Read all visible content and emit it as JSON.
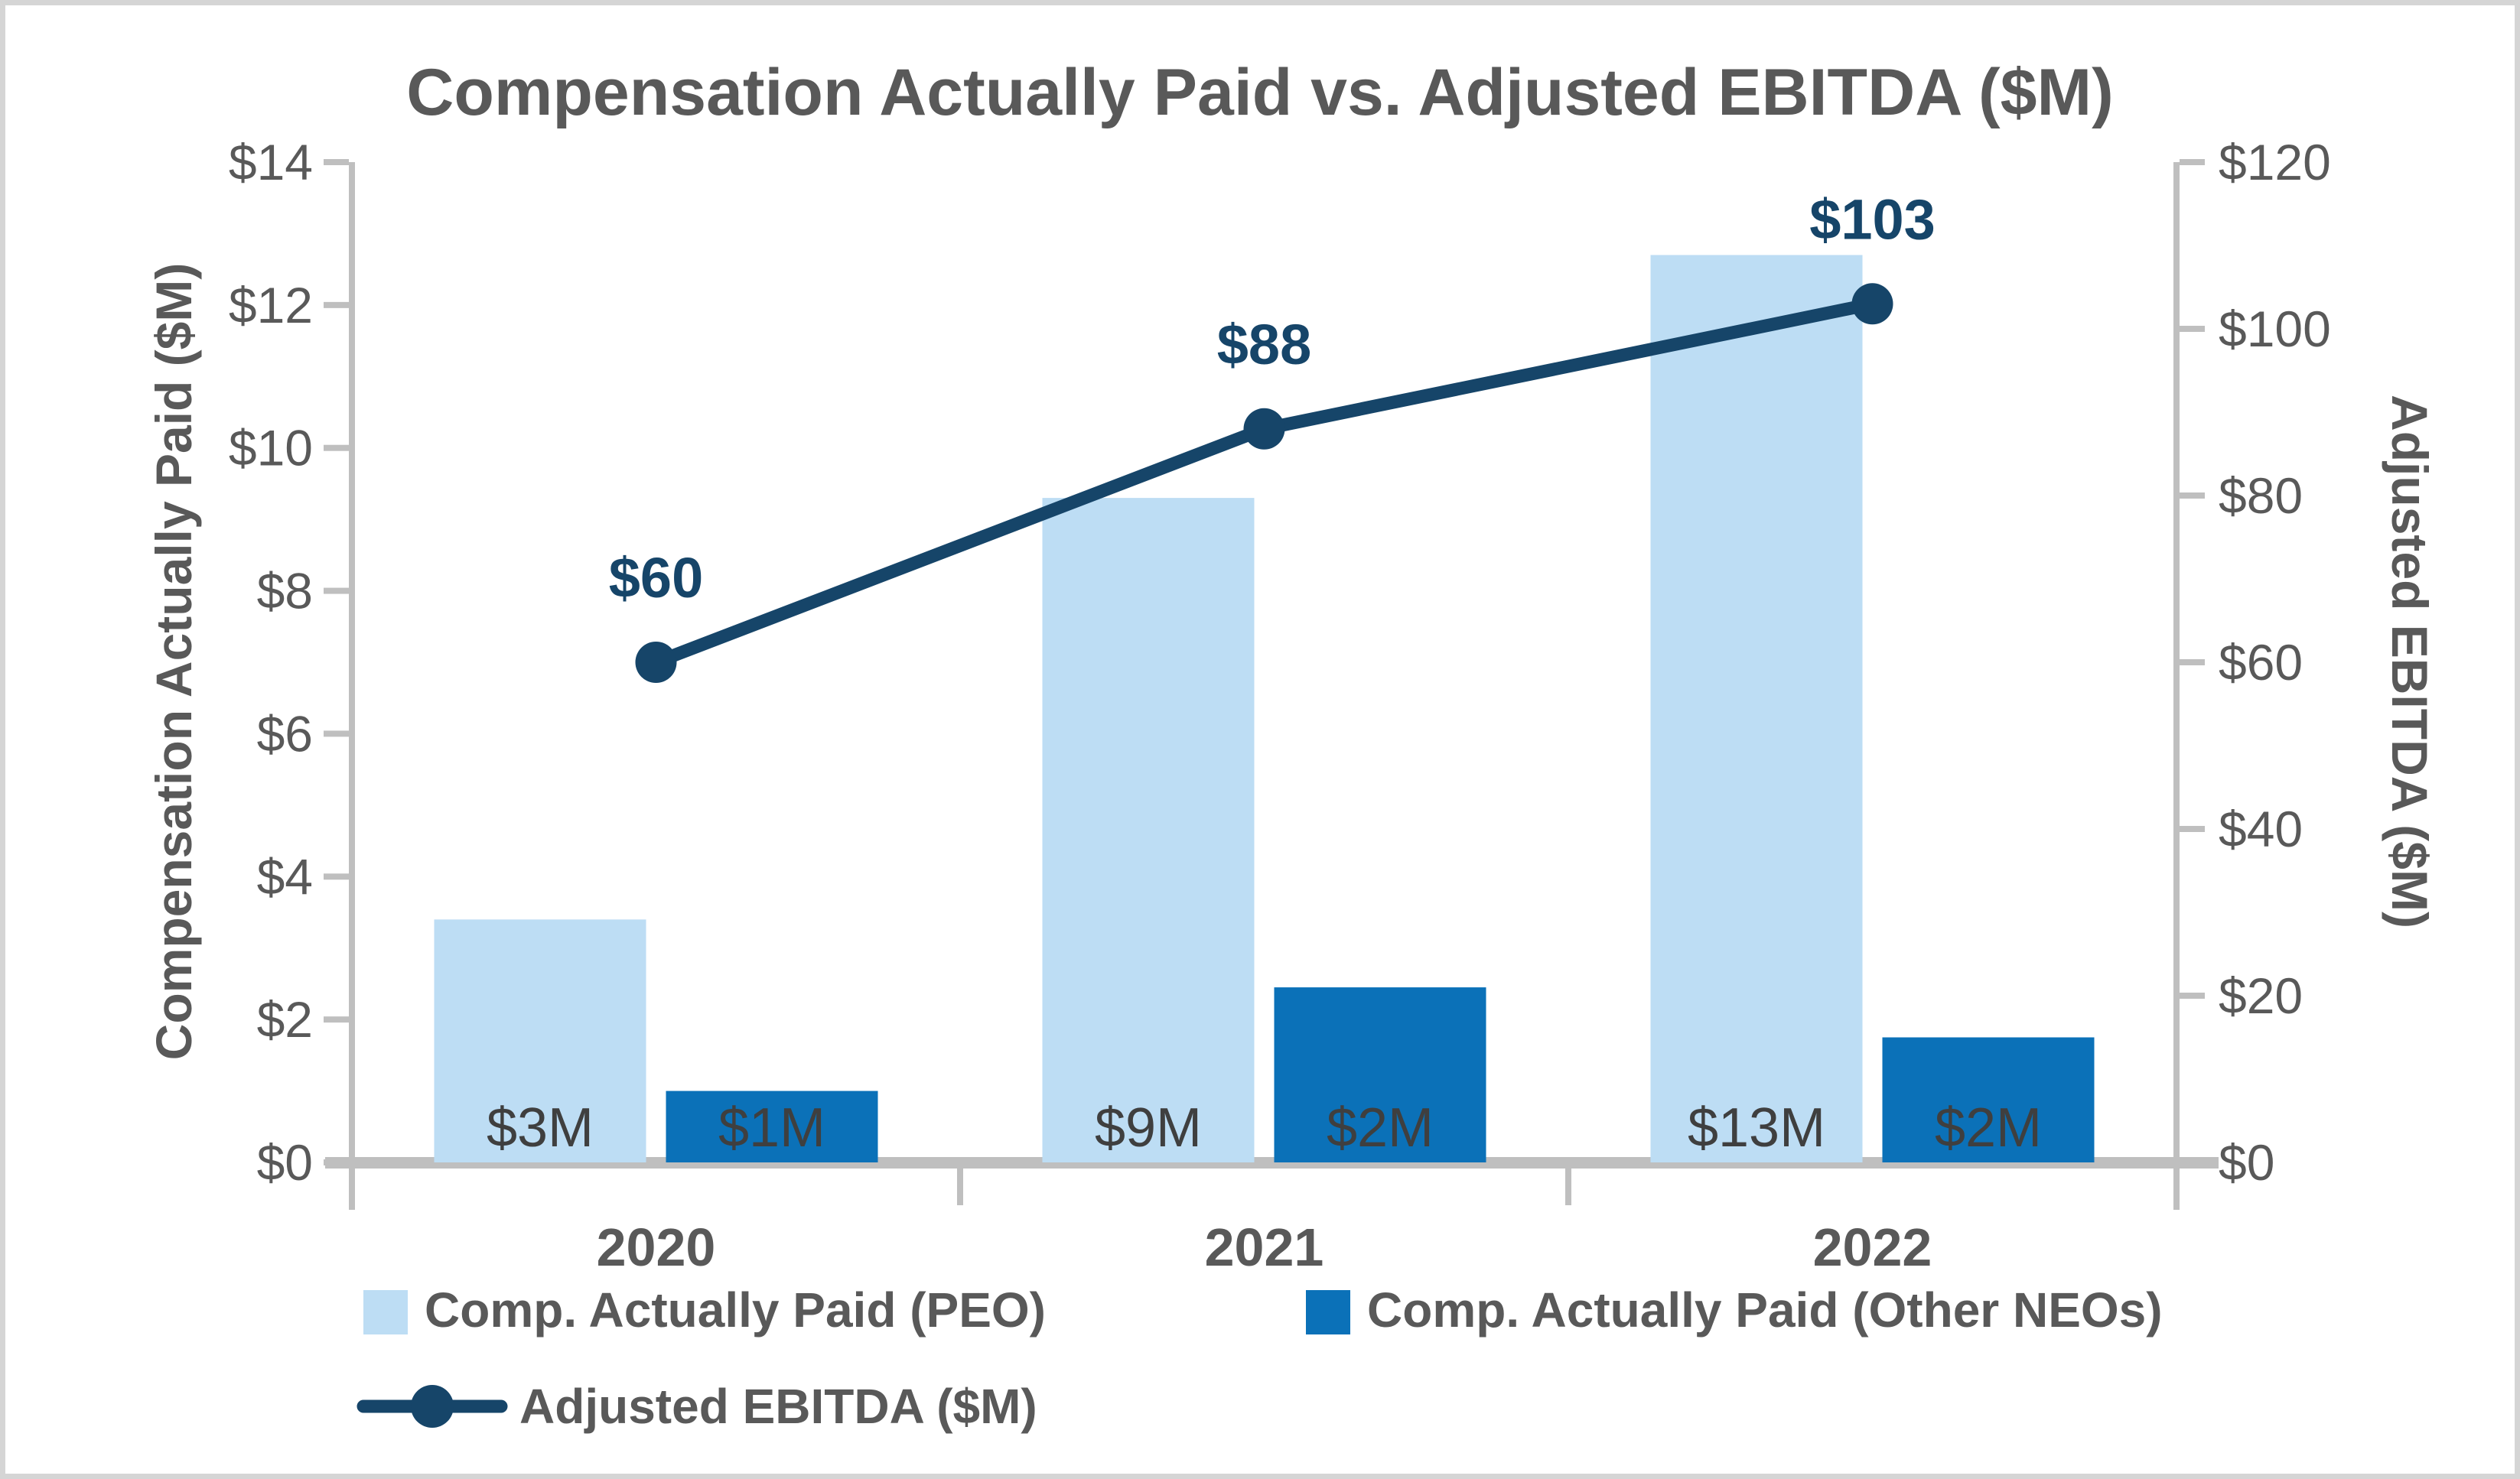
{
  "frame": {
    "background": "#FFFFFF",
    "border_color": "#D5D5D5"
  },
  "chart_data": {
    "type": "combo-bar-line",
    "title": "Compensation Actually Paid vs. Adjusted EBITDA ($M)",
    "categories": [
      "2020",
      "2021",
      "2022"
    ],
    "series": [
      {
        "name": "Comp. Actually Paid (PEO)",
        "type": "bar",
        "axis": "left",
        "color": "#BDDDF4",
        "values": [
          3.4,
          9.3,
          12.7
        ],
        "data_labels": [
          "$3M",
          "$9M",
          "$13M"
        ]
      },
      {
        "name": "Comp. Actually Paid (Other NEOs)",
        "type": "bar",
        "axis": "left",
        "color": "#0B71B8",
        "values": [
          1.0,
          2.45,
          1.75
        ],
        "data_labels": [
          "$1M",
          "$2M",
          "$2M"
        ]
      },
      {
        "name": "Adjusted EBITDA ($M)",
        "type": "line",
        "axis": "right",
        "color": "#164569",
        "values": [
          60,
          88,
          103
        ],
        "data_labels": [
          "$60",
          "$88",
          "$103"
        ]
      }
    ],
    "left_axis": {
      "title": "Compensation Actually Paid ($M)",
      "min": 0,
      "max": 14,
      "step": 2,
      "tick_labels": [
        "$0",
        "$2",
        "$4",
        "$6",
        "$8",
        "$10",
        "$12",
        "$14"
      ]
    },
    "right_axis": {
      "title": "Adjusted EBITDA ($M)",
      "min": 0,
      "max": 120,
      "step": 20,
      "tick_labels": [
        "$0",
        "$20",
        "$40",
        "$60",
        "$80",
        "$100",
        "$120"
      ]
    },
    "grid": false,
    "legend_position": "bottom-left"
  },
  "colors": {
    "title_text": "#595959",
    "axis_text": "#595959",
    "bar_label_text": "#3F3F3F",
    "line_label_text": "#164569",
    "axis_line": "#BFBFBF",
    "bar_light": "#BDDDF4",
    "bar_dark": "#0B71B8",
    "line_navy": "#164569"
  }
}
